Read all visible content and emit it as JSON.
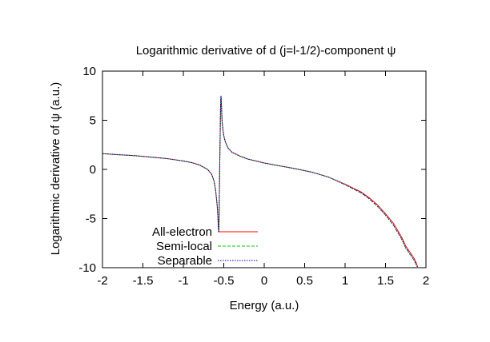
{
  "chart_data": {
    "type": "line",
    "title": "Logarithmic derivative of d (j=l-1/2)-component ψ",
    "xlabel": "Energy (a.u.)",
    "ylabel": "Logarithmic derivative of ψ (a.u.)",
    "xlim": [
      -2,
      2
    ],
    "ylim": [
      -10,
      10
    ],
    "xticks": [
      -2,
      -1.5,
      -1,
      -0.5,
      0,
      0.5,
      1,
      1.5,
      2
    ],
    "xtick_labels": [
      "-2",
      "-1.5",
      "-1",
      "-0.5",
      "0",
      "0.5",
      "1",
      "1.5",
      "2"
    ],
    "yticks": [
      -10,
      -5,
      0,
      5,
      10
    ],
    "ytick_labels": [
      "-10",
      "-5",
      "0",
      "5",
      "10"
    ],
    "grid": false,
    "legend_position": "bottom-left",
    "series": [
      {
        "name": "All-electron",
        "color": "#ff0000",
        "style": "solid",
        "x": [
          -2.0,
          -1.8,
          -1.6,
          -1.4,
          -1.2,
          -1.0,
          -0.9,
          -0.8,
          -0.7,
          -0.65,
          -0.62,
          -0.6,
          -0.58,
          -0.57,
          -0.565,
          -0.56,
          -0.55,
          -0.54,
          -0.535,
          -0.53,
          -0.525,
          -0.52,
          -0.51,
          -0.5,
          -0.48,
          -0.45,
          -0.4,
          -0.3,
          -0.2,
          -0.1,
          0.0,
          0.2,
          0.4,
          0.6,
          0.8,
          1.0,
          1.2,
          1.3,
          1.4,
          1.5,
          1.6,
          1.7,
          1.75,
          1.8,
          1.85,
          1.88,
          1.9
        ],
        "y": [
          1.6,
          1.5,
          1.4,
          1.25,
          1.1,
          0.85,
          0.7,
          0.45,
          0.0,
          -0.5,
          -1.2,
          -2.2,
          -3.8,
          -5.2,
          -6.1,
          -6.3,
          0.2,
          6.5,
          7.5,
          6.8,
          5.6,
          4.8,
          4.0,
          3.4,
          2.8,
          2.2,
          1.75,
          1.35,
          1.05,
          0.85,
          0.65,
          0.35,
          0.05,
          -0.3,
          -0.8,
          -1.5,
          -2.3,
          -2.9,
          -3.6,
          -4.5,
          -5.5,
          -6.9,
          -7.8,
          -8.4,
          -9.0,
          -9.5,
          -10.0
        ]
      },
      {
        "name": "Semi-local",
        "color": "#00cc00",
        "style": "dash",
        "x": [
          -2.0,
          -1.8,
          -1.6,
          -1.4,
          -1.2,
          -1.0,
          -0.9,
          -0.8,
          -0.7,
          -0.65,
          -0.62,
          -0.6,
          -0.58,
          -0.57,
          -0.565,
          -0.56,
          -0.55,
          -0.54,
          -0.535,
          -0.53,
          -0.525,
          -0.52,
          -0.51,
          -0.5,
          -0.48,
          -0.45,
          -0.4,
          -0.3,
          -0.2,
          -0.1,
          0.0,
          0.2,
          0.4,
          0.6,
          0.8,
          1.0,
          1.2,
          1.3,
          1.4,
          1.5,
          1.6,
          1.7,
          1.75,
          1.8,
          1.85,
          1.88,
          1.9
        ],
        "y": [
          1.6,
          1.5,
          1.4,
          1.25,
          1.1,
          0.85,
          0.7,
          0.45,
          0.0,
          -0.5,
          -1.2,
          -2.2,
          -3.8,
          -5.2,
          -6.1,
          -6.3,
          0.2,
          6.5,
          7.5,
          6.8,
          5.6,
          4.8,
          4.0,
          3.4,
          2.8,
          2.2,
          1.75,
          1.35,
          1.05,
          0.85,
          0.65,
          0.35,
          0.05,
          -0.3,
          -0.8,
          -1.55,
          -2.4,
          -3.0,
          -3.75,
          -4.65,
          -5.7,
          -7.1,
          -8.0,
          -8.6,
          -9.2,
          -9.7,
          -10.0
        ]
      },
      {
        "name": "Separable",
        "color": "#0000cc",
        "style": "dot",
        "x": [
          -2.0,
          -1.8,
          -1.6,
          -1.4,
          -1.2,
          -1.0,
          -0.9,
          -0.8,
          -0.7,
          -0.65,
          -0.62,
          -0.6,
          -0.58,
          -0.57,
          -0.565,
          -0.56,
          -0.55,
          -0.54,
          -0.535,
          -0.53,
          -0.525,
          -0.52,
          -0.51,
          -0.5,
          -0.48,
          -0.45,
          -0.4,
          -0.3,
          -0.2,
          -0.1,
          0.0,
          0.2,
          0.4,
          0.6,
          0.8,
          1.0,
          1.2,
          1.3,
          1.4,
          1.5,
          1.6,
          1.7,
          1.75,
          1.8,
          1.85,
          1.88,
          1.9
        ],
        "y": [
          1.6,
          1.5,
          1.4,
          1.25,
          1.1,
          0.85,
          0.7,
          0.45,
          0.0,
          -0.5,
          -1.2,
          -2.2,
          -3.8,
          -5.2,
          -6.1,
          -6.3,
          0.2,
          6.5,
          7.5,
          6.8,
          5.6,
          4.8,
          4.0,
          3.4,
          2.8,
          2.2,
          1.75,
          1.35,
          1.05,
          0.85,
          0.65,
          0.35,
          0.05,
          -0.3,
          -0.8,
          -1.55,
          -2.4,
          -3.0,
          -3.75,
          -4.65,
          -5.7,
          -7.1,
          -8.0,
          -8.6,
          -9.2,
          -9.7,
          -10.0
        ]
      }
    ]
  }
}
